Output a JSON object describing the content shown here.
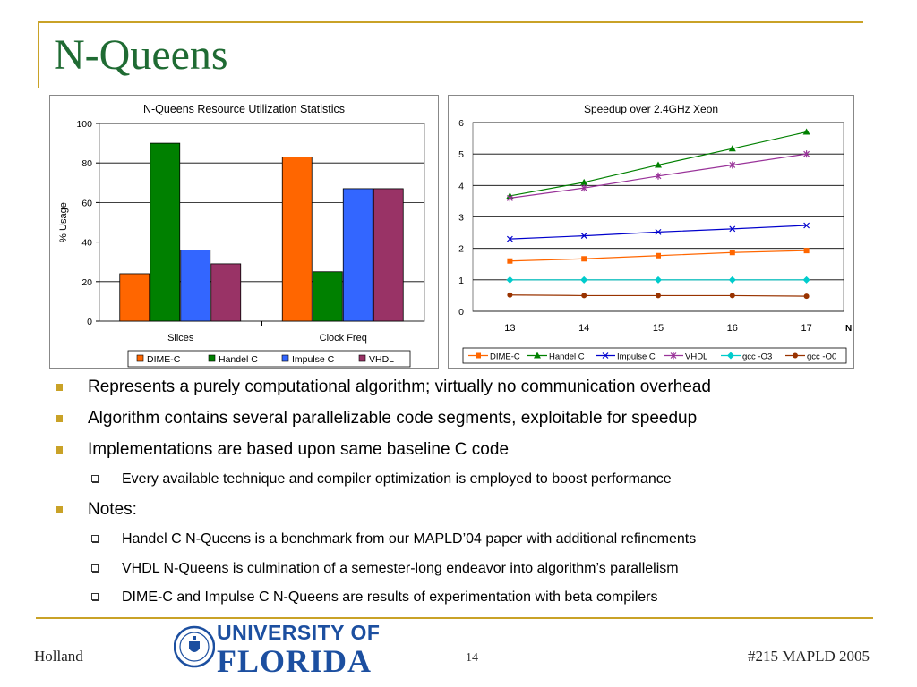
{
  "slide": {
    "title": "N-Queens",
    "bullets": [
      {
        "level": 1,
        "text": "Represents a purely computational algorithm; virtually no communication overhead"
      },
      {
        "level": 1,
        "text": "Algorithm contains several parallelizable code segments, exploitable for speedup"
      },
      {
        "level": 1,
        "text": "Implementations are based upon same baseline C code"
      },
      {
        "level": 2,
        "text": "Every available technique and compiler optimization is employed to boost performance"
      },
      {
        "level": 1,
        "text": "Notes:"
      },
      {
        "level": 2,
        "text": "Handel C N-Queens is a benchmark from our MAPLD’04 paper with additional refinements"
      },
      {
        "level": 2,
        "text": "VHDL N-Queens is culmination of a semester-long endeavor into algorithm’s parallelism"
      },
      {
        "level": 2,
        "text": "DIME-C and Impulse C N-Queens are results of experimentation with beta compilers"
      }
    ]
  },
  "footer": {
    "author": "Holland",
    "page": "14",
    "event": "#215 MAPLD 2005",
    "logo_line1": "UNIVERSITY OF",
    "logo_line2": "FLORIDA"
  },
  "colors": {
    "accent": "#c9a227",
    "title": "#1f6b33",
    "logo": "#1c4fa0"
  },
  "chart_data": [
    {
      "type": "bar",
      "title": "N-Queens Resource Utilization Statistics",
      "ylabel": "% Usage",
      "xlabel": "",
      "ylim": [
        0,
        100
      ],
      "yticks": [
        0,
        20,
        40,
        60,
        80,
        100
      ],
      "categories": [
        "Slices",
        "Clock Freq"
      ],
      "series": [
        {
          "name": "DIME-C",
          "color": "#ff6600",
          "values": [
            24,
            83
          ]
        },
        {
          "name": "Handel C",
          "color": "#008000",
          "values": [
            90,
            25
          ]
        },
        {
          "name": "Impulse C",
          "color": "#3366ff",
          "values": [
            36,
            67
          ]
        },
        {
          "name": "VHDL",
          "color": "#993366",
          "values": [
            29,
            67
          ]
        }
      ],
      "grid": true,
      "legend": "bottom"
    },
    {
      "type": "line",
      "title": "Speedup over 2.4GHz Xeon",
      "xlabel": "N",
      "ylabel": "",
      "ylim": [
        0,
        6
      ],
      "yticks": [
        0,
        1,
        2,
        3,
        4,
        5,
        6
      ],
      "x": [
        13,
        14,
        15,
        16,
        17
      ],
      "series": [
        {
          "name": "DIME-C",
          "color": "#ff6600",
          "marker": "square",
          "values": [
            1.6,
            1.67,
            1.77,
            1.87,
            1.93
          ]
        },
        {
          "name": "Handel C",
          "color": "#008000",
          "marker": "triangle",
          "values": [
            3.67,
            4.1,
            4.65,
            5.17,
            5.7
          ]
        },
        {
          "name": "Impulse C",
          "color": "#0000cc",
          "marker": "x",
          "values": [
            2.3,
            2.4,
            2.52,
            2.62,
            2.73
          ]
        },
        {
          "name": "VHDL",
          "color": "#993399",
          "marker": "star",
          "values": [
            3.6,
            3.92,
            4.3,
            4.65,
            5.0
          ]
        },
        {
          "name": "gcc -O3",
          "color": "#00cccc",
          "marker": "diamond",
          "values": [
            1.0,
            1.0,
            1.0,
            1.0,
            1.0
          ]
        },
        {
          "name": "gcc -O0",
          "color": "#993300",
          "marker": "circle",
          "values": [
            0.52,
            0.5,
            0.5,
            0.5,
            0.48
          ]
        }
      ],
      "grid": true,
      "legend": "bottom"
    }
  ]
}
